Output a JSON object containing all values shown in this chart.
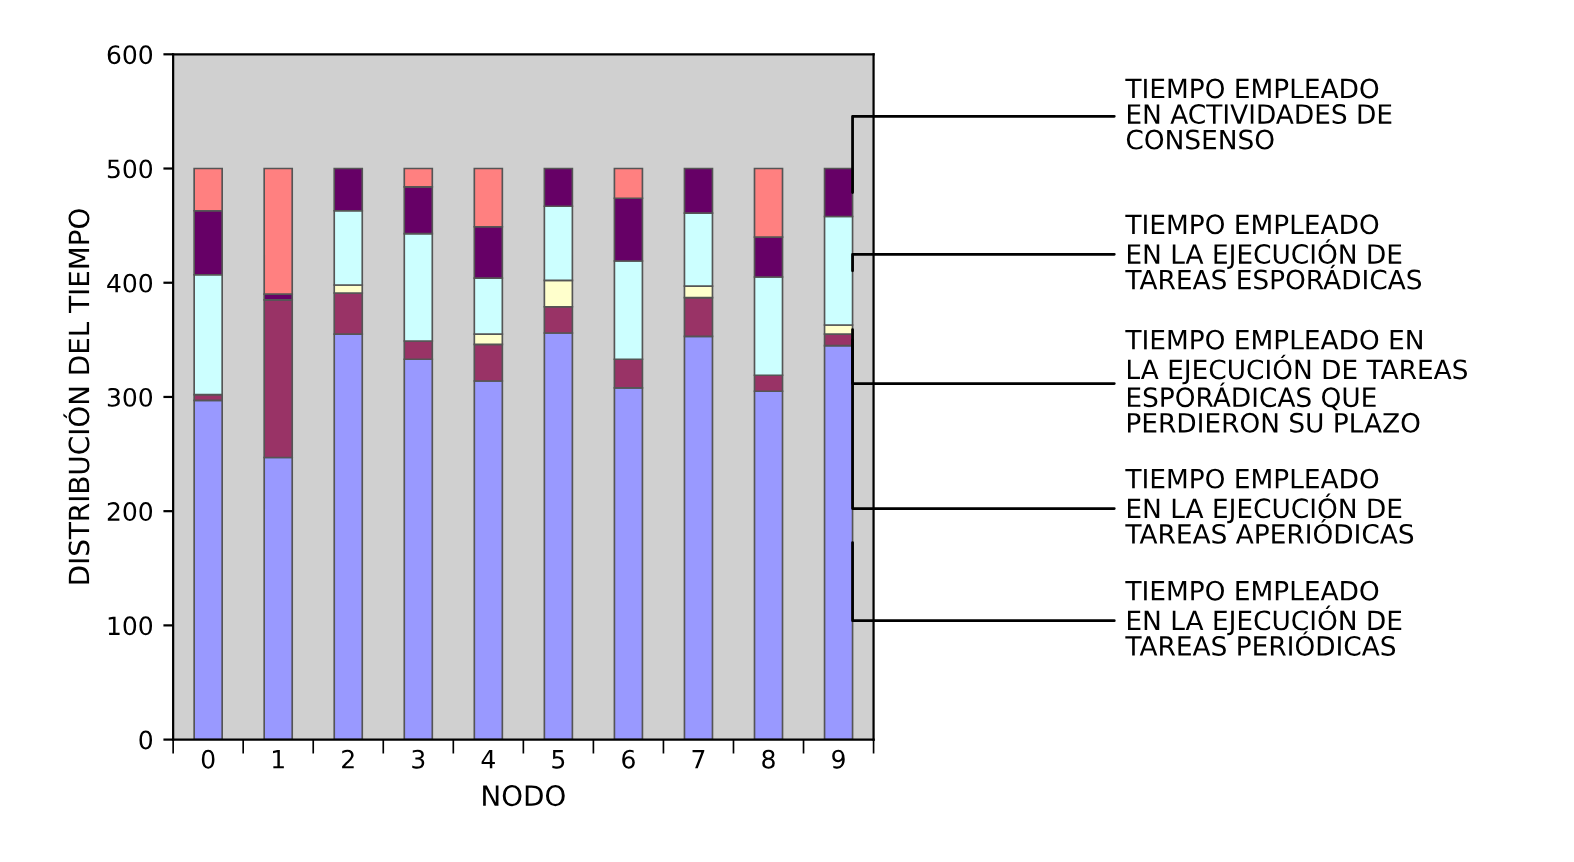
{
  "chart_data": {
    "type": "bar",
    "stacked": true,
    "xlabel": "NODO",
    "ylabel": "DISTRIBUCIÓN DEL TIEMPO",
    "categories": [
      "0",
      "1",
      "2",
      "3",
      "4",
      "5",
      "6",
      "7",
      "8",
      "9"
    ],
    "series": [
      {
        "name": "TIEMPO EMPLEADO\nEN LA EJECUCIÓN DE\nTAREAS PERIÓDICAS",
        "color": "#9999ff",
        "values": [
          297,
          247,
          355,
          333,
          314,
          356,
          308,
          353,
          305,
          345
        ]
      },
      {
        "name": "TIEMPO EMPLEADO\nEN LA EJECUCIÓN DE\nTAREAS APERIÓDICAS",
        "color": "#993366",
        "values": [
          5,
          138,
          36,
          16,
          32,
          23,
          25,
          34,
          14,
          10
        ]
      },
      {
        "name": "TIEMPO EMPLEADO EN\nLA EJECUCIÓN DE TAREAS\nESPORÁDICAS QUE\nPERDIERON SU PLAZO",
        "color": "#ffffcc",
        "values": [
          0,
          0,
          7,
          0,
          9,
          23,
          0,
          10,
          0,
          8
        ]
      },
      {
        "name": "TIEMPO EMPLEADO\nEN LA EJECUCIÓN DE\nTAREAS ESPORÁDICAS",
        "color": "#ccffff",
        "values": [
          105,
          0,
          65,
          94,
          49,
          65,
          86,
          64,
          86,
          95
        ]
      },
      {
        "name": "TIEMPO EMPLEADO\nEN ACTIVIDADES DE\nCONSENSO",
        "color": "#660066",
        "values": [
          56,
          5,
          37,
          41,
          45,
          33,
          55,
          39,
          35,
          42
        ]
      },
      {
        "color": "#ff8080",
        "values": [
          37,
          110,
          0,
          16,
          51,
          0,
          26,
          0,
          60,
          0
        ]
      }
    ],
    "ylim": [
      0,
      600
    ],
    "yticks": [
      0,
      100,
      200,
      300,
      400,
      500,
      600
    ],
    "grid": false,
    "legend": false
  }
}
